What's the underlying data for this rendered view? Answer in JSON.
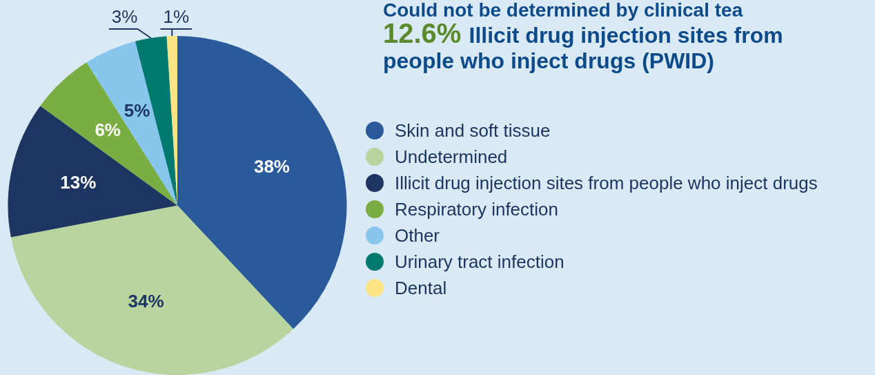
{
  "chart_data": {
    "type": "pie",
    "categories": [
      "Skin and soft tissue",
      "Undetermined",
      "Illicit drug injection sites from people who inject drugs",
      "Respiratory infection",
      "Other",
      "Urinary tract infection",
      "Dental"
    ],
    "values": [
      38,
      34,
      13,
      6,
      5,
      3,
      1
    ],
    "colors": [
      "#2a5a9a",
      "#b8d5a0",
      "#1d3560",
      "#7aad42",
      "#88c6ee",
      "#007a70",
      "#fde384"
    ],
    "value_labels": [
      "38%",
      "34%",
      "13%",
      "6%",
      "5%",
      "3%",
      "1%"
    ],
    "legend": "right",
    "annotations": [
      "Could not be determined by clinical tea",
      "12.6% Illicit drug injection sites from people who inject drugs (PWID)"
    ]
  }
}
